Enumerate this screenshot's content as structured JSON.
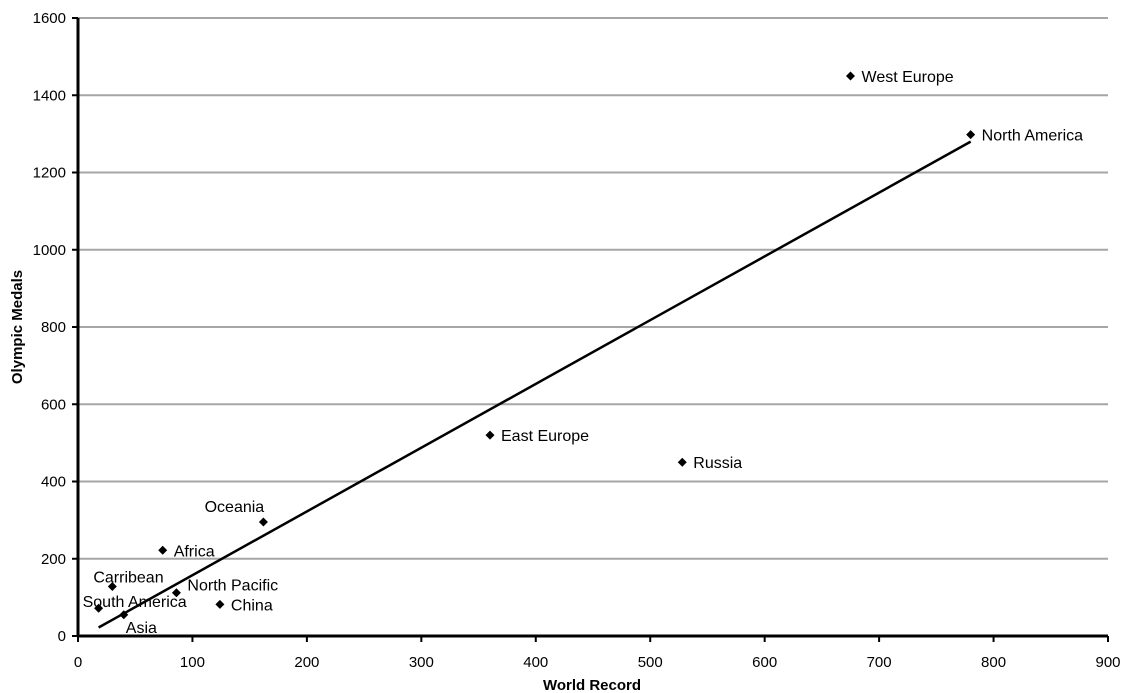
{
  "chart_data": {
    "type": "scatter",
    "title": "",
    "xlabel": "World Record",
    "ylabel": "Olympic Medals",
    "xlim": [
      0,
      900
    ],
    "ylim": [
      0,
      1600
    ],
    "x_ticks": [
      0,
      100,
      200,
      300,
      400,
      500,
      600,
      700,
      800,
      900
    ],
    "y_ticks": [
      0,
      200,
      400,
      600,
      800,
      1000,
      1200,
      1400,
      1600
    ],
    "grid": "horizontal",
    "legend": "none",
    "marker": "diamond",
    "colors": {
      "marker": "#000000",
      "trendline": "#000000",
      "grid": "#a6a6a6",
      "axis": "#000000"
    },
    "points": [
      {
        "label": "West Europe",
        "x": 675,
        "y": 1450
      },
      {
        "label": "North America",
        "x": 780,
        "y": 1298
      },
      {
        "label": "East Europe",
        "x": 360,
        "y": 520
      },
      {
        "label": "Russia",
        "x": 528,
        "y": 450
      },
      {
        "label": "Oceania",
        "x": 162,
        "y": 295
      },
      {
        "label": "Africa",
        "x": 74,
        "y": 222
      },
      {
        "label": "Carribean",
        "x": 30,
        "y": 128
      },
      {
        "label": "North Pacific",
        "x": 86,
        "y": 112
      },
      {
        "label": "South America",
        "x": 18,
        "y": 72
      },
      {
        "label": "China",
        "x": 124,
        "y": 82
      },
      {
        "label": "Asia",
        "x": 40,
        "y": 55
      }
    ],
    "trendline": {
      "type": "linear",
      "x": [
        18,
        780
      ],
      "y": [
        22,
        1280
      ]
    }
  }
}
